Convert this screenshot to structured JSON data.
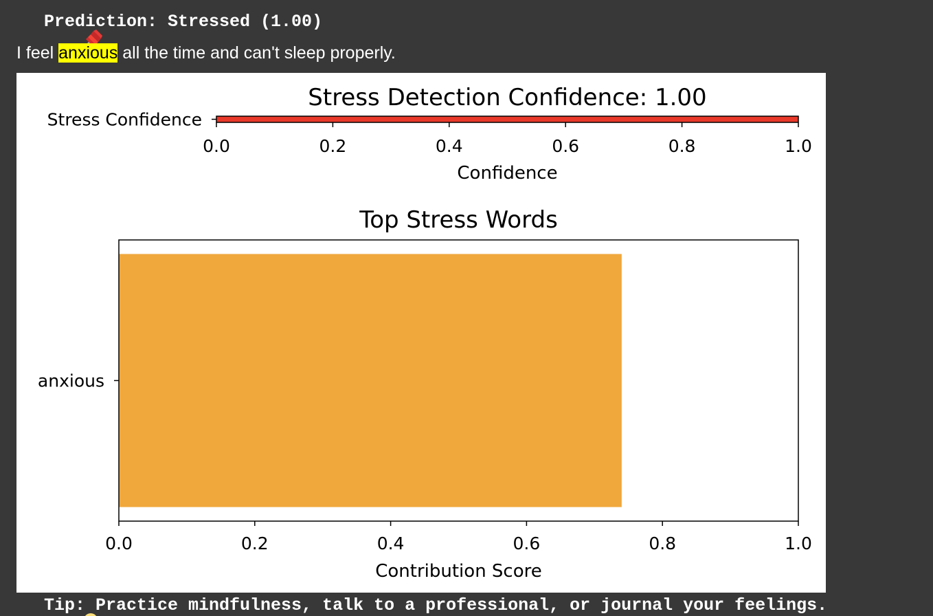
{
  "prediction": {
    "icon": "pushpin-icon",
    "text": "Prediction: Stressed (1.00)"
  },
  "sentence": {
    "before": "I feel ",
    "highlight": "anxious",
    "after": " all the time and can't sleep properly.",
    "highlight_color": "#ffff00"
  },
  "tip": {
    "icon": "lightbulb-icon",
    "text": "Tip: Practice mindfulness, talk to a professional, or journal your feelings."
  },
  "chart_data": [
    {
      "type": "bar",
      "orientation": "horizontal",
      "title": "Stress Detection Confidence: 1.00",
      "categories": [
        "Stress Confidence"
      ],
      "values": [
        1.0
      ],
      "xlabel": "Confidence",
      "ylabel": "",
      "xlim": [
        0,
        1
      ],
      "xticks": [
        "0.0",
        "0.2",
        "0.4",
        "0.6",
        "0.8",
        "1.0"
      ],
      "bar_color": "#e8392a"
    },
    {
      "type": "bar",
      "orientation": "horizontal",
      "title": "Top Stress Words",
      "categories": [
        "anxious"
      ],
      "values": [
        0.74
      ],
      "xlabel": "Contribution Score",
      "ylabel": "",
      "xlim": [
        0,
        1
      ],
      "xticks": [
        "0.0",
        "0.2",
        "0.4",
        "0.6",
        "0.8",
        "1.0"
      ],
      "bar_color": "#f0a83c"
    }
  ]
}
